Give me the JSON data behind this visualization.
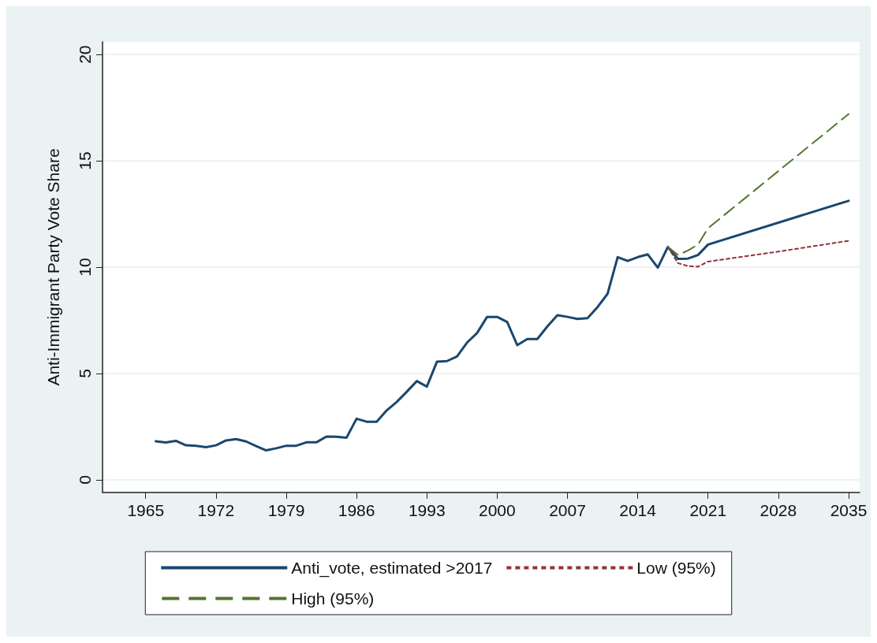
{
  "chart_data": {
    "type": "line",
    "ylabel": "Anti-Immigrant Party Vote Share",
    "xlim": [
      1960.7,
      2036.1
    ],
    "xticks": [
      1965,
      1972,
      1979,
      1986,
      1993,
      2000,
      2007,
      2014,
      2021,
      2028,
      2035
    ],
    "ylim": [
      -0.6,
      20.6
    ],
    "yticks": [
      0,
      5,
      10,
      15,
      20
    ],
    "grid": "y",
    "legend": "bottom",
    "marker": "none",
    "series": [
      {
        "name": "Anti_vote, estimated >2017",
        "color": "#1a476f",
        "line_style": "solid",
        "x": [
          1966,
          1967,
          1968,
          1969,
          1970,
          1971,
          1972,
          1973,
          1974,
          1975,
          1976,
          1977,
          1978,
          1979,
          1980,
          1981,
          1982,
          1983,
          1984,
          1985,
          1986,
          1987,
          1988,
          1989,
          1990,
          1991,
          1992,
          1993,
          1994,
          1995,
          1996,
          1997,
          1998,
          1999,
          2000,
          2001,
          2002,
          2003,
          2004,
          2005,
          2006,
          2007,
          2008,
          2009,
          2010,
          2011,
          2012,
          2013,
          2014,
          2015,
          2016,
          2017,
          2018,
          2019,
          2020,
          2021,
          2035
        ],
        "values": [
          1.81,
          1.75,
          1.83,
          1.62,
          1.6,
          1.53,
          1.62,
          1.85,
          1.91,
          1.8,
          1.58,
          1.38,
          1.48,
          1.6,
          1.6,
          1.76,
          1.76,
          2.03,
          2.02,
          1.98,
          2.87,
          2.73,
          2.73,
          3.26,
          3.66,
          4.14,
          4.64,
          4.38,
          5.55,
          5.58,
          5.8,
          6.45,
          6.9,
          7.66,
          7.66,
          7.42,
          6.33,
          6.62,
          6.62,
          7.21,
          7.74,
          7.66,
          7.56,
          7.6,
          8.12,
          8.75,
          10.47,
          10.29,
          10.47,
          10.6,
          9.98,
          10.95,
          10.39,
          10.4,
          10.57,
          11.06,
          13.12
        ]
      },
      {
        "name": "Low (95%)",
        "color": "#90353b",
        "line_style": "dotted",
        "x": [
          2017,
          2018,
          2019,
          2020,
          2021,
          2028,
          2035
        ],
        "values": [
          10.95,
          10.19,
          10.05,
          10.02,
          10.26,
          10.73,
          11.24
        ]
      },
      {
        "name": "High (95%)",
        "color": "#55752f",
        "line_style": "dashed",
        "x": [
          2017,
          2018,
          2019,
          2020,
          2021,
          2035
        ],
        "values": [
          10.95,
          10.57,
          10.78,
          11.06,
          11.83,
          17.2
        ]
      }
    ]
  }
}
